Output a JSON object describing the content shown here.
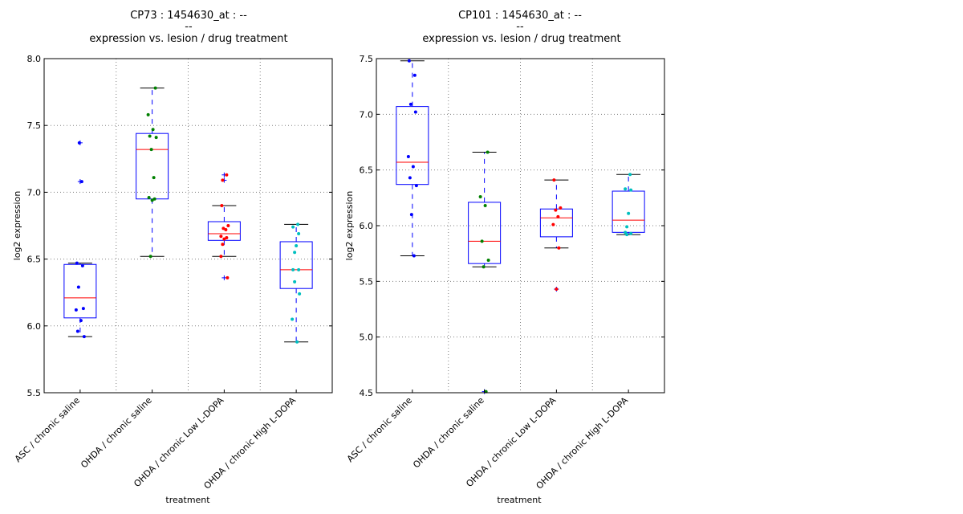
{
  "chart_data": [
    {
      "type": "box",
      "title_lines": [
        "CP73 : 1454630_at : --",
        "--",
        "expression vs. lesion / drug treatment"
      ],
      "xlabel": "treatment",
      "ylabel": "log2 expression",
      "ylim": [
        5.5,
        8.0
      ],
      "yticks": [
        "5.5",
        "6.0",
        "6.5",
        "7.0",
        "7.5",
        "8.0"
      ],
      "grid": true,
      "categories": [
        "ASC / chronic saline",
        "OHDA / chronic saline",
        "OHDA / chronic Low L-DOPA",
        "OHDA / chronic High L-DOPA"
      ],
      "series": [
        {
          "name": "ASC / chronic saline",
          "color": "#0000ff",
          "whisker_low": 5.92,
          "q1": 6.06,
          "median": 6.21,
          "q3": 6.46,
          "whisker_high": 6.47,
          "outliers": [
            7.37,
            7.08
          ],
          "points": [
            6.47,
            6.45,
            6.29,
            6.13,
            6.12,
            6.04,
            5.96,
            5.92,
            7.37,
            7.08
          ]
        },
        {
          "name": "OHDA / chronic saline",
          "color": "#008000",
          "whisker_low": 6.52,
          "q1": 6.95,
          "median": 7.32,
          "q3": 7.44,
          "whisker_high": 7.78,
          "outliers": [],
          "points": [
            7.78,
            7.58,
            7.47,
            7.42,
            7.41,
            7.32,
            7.11,
            6.96,
            6.95,
            6.94,
            6.52
          ]
        },
        {
          "name": "OHDA / chronic Low L-DOPA",
          "color": "#ff0000",
          "whisker_low": 6.52,
          "q1": 6.64,
          "median": 6.69,
          "q3": 6.78,
          "whisker_high": 6.9,
          "outliers": [
            7.13,
            7.09,
            6.36
          ],
          "points": [
            6.9,
            6.75,
            6.73,
            6.72,
            6.67,
            6.66,
            6.65,
            6.61,
            6.52,
            7.13,
            7.09,
            6.36
          ]
        },
        {
          "name": "OHDA / chronic High L-DOPA",
          "color": "#00bfbf",
          "whisker_low": 5.88,
          "q1": 6.28,
          "median": 6.42,
          "q3": 6.63,
          "whisker_high": 6.76,
          "outliers": [],
          "points": [
            6.76,
            6.74,
            6.69,
            6.6,
            6.55,
            6.42,
            6.42,
            6.33,
            6.24,
            6.05,
            5.88
          ]
        }
      ]
    },
    {
      "type": "box",
      "title_lines": [
        "CP101 : 1454630_at : --",
        "--",
        "expression vs. lesion / drug treatment"
      ],
      "xlabel": "treatment",
      "ylabel": "log2 expression",
      "ylim": [
        4.5,
        7.5
      ],
      "yticks": [
        "4.5",
        "5.0",
        "5.5",
        "6.0",
        "6.5",
        "7.0",
        "7.5"
      ],
      "grid": true,
      "categories": [
        "ASC / chronic saline",
        "OHDA / chronic saline",
        "OHDA / chronic Low L-DOPA",
        "OHDA / chronic High L-DOPA"
      ],
      "series": [
        {
          "name": "ASC / chronic saline",
          "color": "#0000ff",
          "whisker_low": 5.73,
          "q1": 6.37,
          "median": 6.57,
          "q3": 7.07,
          "whisker_high": 7.48,
          "outliers": [],
          "points": [
            7.48,
            7.35,
            7.09,
            7.02,
            6.62,
            6.53,
            6.43,
            6.36,
            6.1,
            5.73
          ]
        },
        {
          "name": "OHDA / chronic saline",
          "color": "#008000",
          "whisker_low": 5.63,
          "q1": 5.66,
          "median": 5.86,
          "q3": 6.21,
          "whisker_high": 6.66,
          "outliers": [
            4.51
          ],
          "points": [
            6.66,
            6.26,
            6.18,
            5.86,
            5.69,
            5.63,
            4.51
          ]
        },
        {
          "name": "OHDA / chronic Low L-DOPA",
          "color": "#ff0000",
          "whisker_low": 5.8,
          "q1": 5.9,
          "median": 6.07,
          "q3": 6.15,
          "whisker_high": 6.41,
          "outliers": [
            5.43
          ],
          "points": [
            6.41,
            6.16,
            6.14,
            6.08,
            6.01,
            5.8,
            5.43
          ]
        },
        {
          "name": "OHDA / chronic High L-DOPA",
          "color": "#00bfbf",
          "whisker_low": 5.92,
          "q1": 5.94,
          "median": 6.05,
          "q3": 6.31,
          "whisker_high": 6.46,
          "outliers": [],
          "points": [
            6.46,
            6.33,
            6.32,
            6.11,
            5.99,
            5.94,
            5.93,
            5.92
          ]
        }
      ]
    }
  ]
}
